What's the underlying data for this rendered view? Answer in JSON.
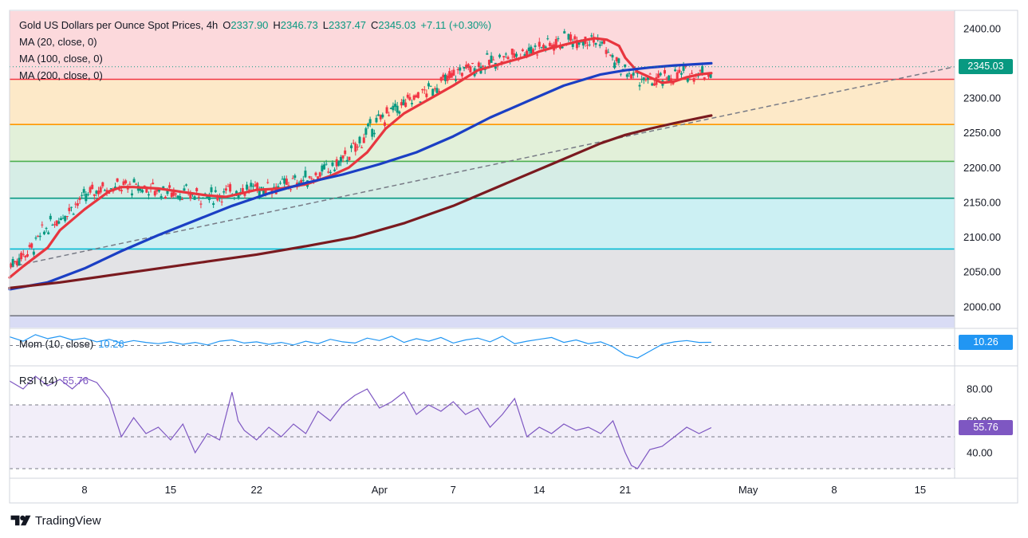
{
  "header": {
    "symbol": "Gold US Dollars per Ounce Spot Prices, 4h",
    "open_label": "O",
    "open": "2337.90",
    "high_label": "H",
    "high": "2346.73",
    "low_label": "L",
    "low": "2337.47",
    "close_label": "C",
    "close": "2345.03",
    "change": "+7.11 (+0.30%)"
  },
  "indicators": {
    "ma20": "MA (20, close, 0)",
    "ma100": "MA (100, close, 0)",
    "ma200": "MA (200, close, 0)",
    "mom": "Mom (10, close)",
    "mom_value": "10.26",
    "rsi": "RSI (14)",
    "rsi_value": "55.76"
  },
  "badges": {
    "last_price": "2345.03",
    "mom": "10.26",
    "rsi": "55.76"
  },
  "footer": {
    "brand": "TradingView"
  },
  "colors": {
    "ma20": "#e8363f",
    "ma100": "#1b3fc4",
    "ma200": "#7a1a1f",
    "candle_up": "#089981",
    "mom": "#2196f3",
    "rsi": "#7e57c2",
    "price_badge": "#089981",
    "mom_badge": "#2196f3",
    "rsi_badge": "#7e57c2"
  },
  "chart_data": [
    {
      "type": "line",
      "panel": "price",
      "title": "Gold US Dollars per Ounce Spot Prices, 4h",
      "ylim": [
        1970,
        2425
      ],
      "y_ticks": [
        2000,
        2050,
        2100,
        2150,
        2200,
        2250,
        2300,
        2350,
        2400
      ],
      "y_tick_labels": [
        "2000.00",
        "2050.00",
        "2100.00",
        "2150.00",
        "2200.00",
        "2250.00",
        "2300.00",
        "2350.00",
        "2400.00"
      ],
      "x_tick_labels": [
        "8",
        "15",
        "22",
        "Apr",
        "7",
        "14",
        "21",
        "May",
        "8",
        "15"
      ],
      "x_tick_days": [
        8,
        15,
        22,
        32,
        38,
        45,
        52,
        62,
        69,
        76
      ],
      "x_domain_days": [
        1.9,
        78.8
      ],
      "fib_levels": [
        {
          "value": 2327,
          "color": "#f23645"
        },
        {
          "value": 2262,
          "color": "#ff9800"
        },
        {
          "value": 2209,
          "color": "#4caf50"
        },
        {
          "value": 2156,
          "color": "#089981"
        },
        {
          "value": 2083,
          "color": "#00bcd4"
        },
        {
          "value": 1987,
          "color": "#787b86"
        }
      ],
      "zones": [
        {
          "from": 2327,
          "to": 2425,
          "color": "#fcd9dc"
        },
        {
          "from": 2262,
          "to": 2327,
          "color": "#fde9c8"
        },
        {
          "from": 2209,
          "to": 2262,
          "color": "#e2f0d9"
        },
        {
          "from": 2156,
          "to": 2209,
          "color": "#d6ede6"
        },
        {
          "from": 2083,
          "to": 2156,
          "color": "#ccf0f3"
        },
        {
          "from": 1987,
          "to": 2083,
          "color": "#e3e3e6"
        },
        {
          "from": 1970,
          "to": 1987,
          "color": "#d9dcf5"
        }
      ],
      "trendline": {
        "x": [
          1.9,
          78.8
        ],
        "y": [
          2057,
          2345
        ]
      },
      "series": [
        {
          "name": "MA (20, close, 0)",
          "color": "#e8363f",
          "x": [
            1.9,
            3,
            5,
            6,
            8,
            9,
            10,
            11,
            12,
            14,
            16,
            18,
            19.5,
            20.5,
            22,
            24,
            26,
            28,
            29.5,
            31,
            32.5,
            34,
            36,
            38,
            40,
            42,
            44,
            45,
            46,
            48,
            49.5,
            50.5,
            51.5,
            52,
            53,
            54,
            55,
            56,
            57,
            58,
            59
          ],
          "y": [
            2042,
            2058,
            2085,
            2110,
            2140,
            2153,
            2166,
            2172,
            2172,
            2170,
            2165,
            2160,
            2158,
            2162,
            2168,
            2170,
            2176,
            2188,
            2200,
            2222,
            2256,
            2278,
            2298,
            2318,
            2340,
            2350,
            2360,
            2367,
            2372,
            2381,
            2386,
            2384,
            2375,
            2358,
            2338,
            2330,
            2322,
            2324,
            2330,
            2334,
            2336
          ]
        },
        {
          "name": "MA (100, close, 0)",
          "color": "#1b3fc4",
          "x": [
            1.9,
            5,
            8,
            11,
            14,
            17,
            20,
            23,
            26,
            29,
            32,
            35,
            38,
            41,
            44,
            47,
            50,
            52,
            54,
            56,
            59
          ],
          "y": [
            2025,
            2035,
            2055,
            2080,
            2103,
            2124,
            2145,
            2163,
            2178,
            2190,
            2205,
            2222,
            2245,
            2272,
            2295,
            2318,
            2334,
            2340,
            2344,
            2347,
            2350
          ]
        },
        {
          "name": "MA (200, close, 0)",
          "color": "#7a1a1f",
          "x": [
            1.9,
            6,
            10,
            14,
            18,
            22,
            26,
            30,
            34,
            38,
            42,
            46,
            50,
            52,
            54,
            56,
            59
          ],
          "y": [
            2027,
            2035,
            2045,
            2055,
            2065,
            2075,
            2087,
            2100,
            2120,
            2145,
            2175,
            2205,
            2235,
            2247,
            2256,
            2264,
            2275
          ]
        }
      ],
      "last_price": 2345.03
    },
    {
      "type": "line",
      "panel": "momentum",
      "title": "Mom (10, close)",
      "value": 10.26,
      "series": [
        {
          "name": "Mom (10, close)",
          "color": "#2196f3",
          "x": [
            1.9,
            3,
            4,
            5,
            6,
            7,
            8,
            9,
            10,
            11,
            12,
            13,
            14,
            15,
            16,
            17,
            18,
            19,
            20,
            21,
            22,
            23,
            24,
            25,
            26,
            27,
            28,
            29,
            30,
            31,
            32,
            33,
            34,
            35,
            36,
            37,
            38,
            39,
            40,
            41,
            42,
            43,
            44,
            45,
            46,
            47,
            48,
            49,
            50,
            51,
            52,
            53,
            54,
            55,
            56,
            57,
            58,
            59
          ],
          "y": [
            28,
            14,
            35,
            22,
            30,
            18,
            24,
            12,
            20,
            8,
            16,
            10,
            6,
            12,
            4,
            10,
            2,
            14,
            18,
            8,
            12,
            4,
            10,
            2,
            14,
            6,
            20,
            12,
            8,
            24,
            16,
            30,
            10,
            22,
            14,
            26,
            8,
            18,
            24,
            12,
            30,
            6,
            14,
            20,
            26,
            10,
            18,
            6,
            12,
            -4,
            -30,
            -40,
            -18,
            4,
            12,
            16,
            10,
            10.26
          ]
        }
      ]
    },
    {
      "type": "line",
      "panel": "rsi",
      "title": "RSI (14)",
      "ylim": [
        25,
        93
      ],
      "y_ticks": [
        40,
        60,
        80
      ],
      "y_tick_labels": [
        "40.00",
        "60.00",
        "80.00"
      ],
      "bands": [
        30,
        50,
        70
      ],
      "value": 55.76,
      "series": [
        {
          "name": "RSI (14)",
          "color": "#7e57c2",
          "x": [
            1.9,
            3,
            4,
            5,
            6,
            7,
            8,
            9,
            10,
            11,
            12,
            13,
            14,
            15,
            16,
            17,
            18,
            19,
            20,
            20.5,
            21,
            22,
            23,
            24,
            25,
            26,
            27,
            28,
            29,
            30,
            31,
            32,
            33,
            34,
            35,
            36,
            37,
            38,
            39,
            40,
            41,
            42,
            43,
            44,
            45,
            46,
            47,
            48,
            49,
            50,
            51,
            52,
            52.5,
            53,
            54,
            55,
            56,
            57,
            58,
            59
          ],
          "y": [
            85,
            80,
            88,
            82,
            86,
            80,
            87,
            84,
            74,
            50,
            62,
            52,
            56,
            48,
            58,
            40,
            52,
            48,
            78,
            60,
            54,
            48,
            56,
            50,
            58,
            52,
            66,
            60,
            70,
            76,
            80,
            68,
            72,
            78,
            64,
            70,
            66,
            72,
            64,
            68,
            56,
            64,
            74,
            50,
            56,
            52,
            58,
            54,
            56,
            52,
            60,
            40,
            32,
            30,
            42,
            44,
            50,
            56,
            52,
            55.76
          ]
        }
      ]
    }
  ]
}
